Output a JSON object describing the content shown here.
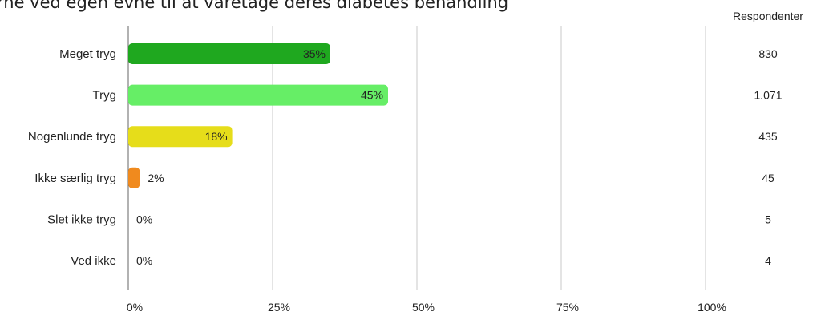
{
  "chart_data": {
    "type": "bar",
    "orientation": "horizontal",
    "title": "rne ved egen evne til at varetage deres diabetes behandling",
    "categories": [
      "Meget tryg",
      "Tryg",
      "Nogenlunde tryg",
      "Ikke særlig tryg",
      "Slet ikke tryg",
      "Ved ikke"
    ],
    "values": [
      35,
      45,
      18,
      2,
      0,
      0
    ],
    "value_labels": [
      "35%",
      "45%",
      "18%",
      "2%",
      "0%",
      "0%"
    ],
    "bar_colors": [
      "#1fa81f",
      "#66ee66",
      "#e6dd1a",
      "#f08a1e",
      "#f08a1e",
      "#f08a1e"
    ],
    "xlim": [
      0,
      100
    ],
    "xticks": [
      0,
      25,
      50,
      75,
      100
    ],
    "xtick_labels": [
      "0%",
      "25%",
      "50%",
      "75%",
      "100%"
    ],
    "grid": "vertical",
    "respondents_header": "Respondenter",
    "respondents": [
      "830",
      "1.071",
      "435",
      "45",
      "5",
      "4"
    ]
  }
}
